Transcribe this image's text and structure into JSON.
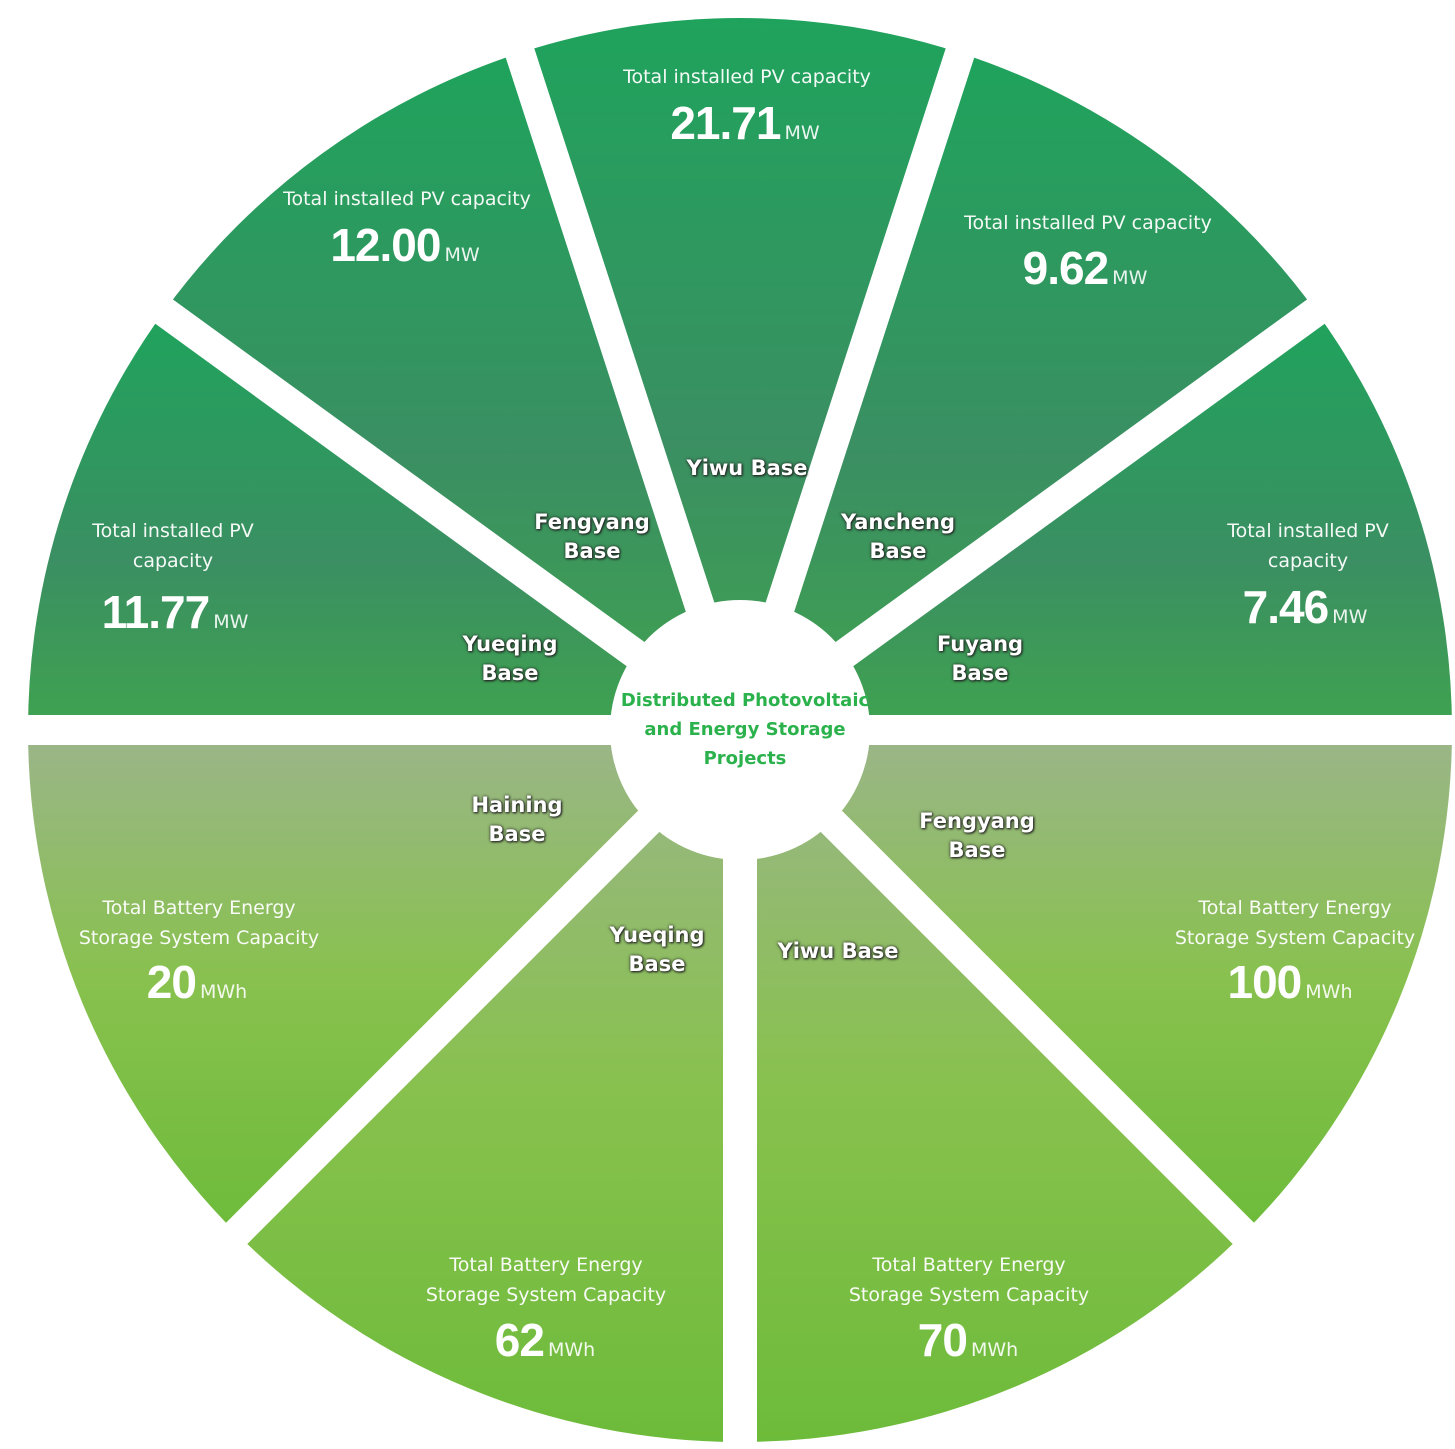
{
  "center_title": "Distributed Photovoltaic and Energy Storage Projects",
  "segments": [
    {
      "base": "Yueqing Base",
      "label": "Total installed PV capacity",
      "value": "11.77",
      "unit": "MW"
    },
    {
      "base": "Fengyang Base",
      "label": "Total installed PV capacity",
      "value": "12.00",
      "unit": "MW"
    },
    {
      "base": "Yiwu Base",
      "label": "Total installed PV capacity",
      "value": "21.71",
      "unit": "MW"
    },
    {
      "base": "Yancheng Base",
      "label": "Total installed PV capacity",
      "value": "9.62",
      "unit": "MW"
    },
    {
      "base": "Fuyang Base",
      "label": "Total installed PV capacity",
      "value": "7.46",
      "unit": "MW"
    },
    {
      "base": "Haining Base",
      "label": "Total Battery Energy Storage System Capacity",
      "value": "20",
      "unit": "MWh"
    },
    {
      "base": "Yueqing Base",
      "label": "Total Battery Energy Storage System Capacity",
      "value": "62",
      "unit": "MWh"
    },
    {
      "base": "Yiwu Base",
      "label": "Total Battery Energy Storage System Capacity",
      "value": "70",
      "unit": "MWh"
    },
    {
      "base": "Fengyang Base",
      "label": "Total Battery Energy Storage System Capacity",
      "value": "100",
      "unit": "MWh"
    }
  ]
}
